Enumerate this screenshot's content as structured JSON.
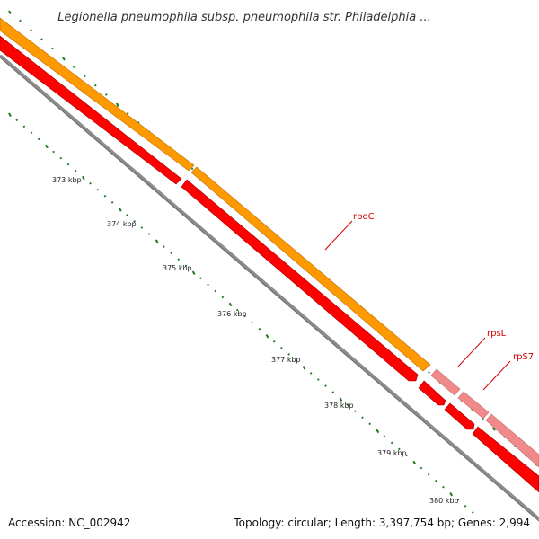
{
  "title": "Legionella pneumophila subsp. pneumophila str. Philadelphia ...",
  "footer": {
    "accession": "Accession: NC_002942",
    "summary": "Topology: circular; Length: 3,397,754 bp; Genes: 2,994"
  },
  "ticks": [
    {
      "label": "373 kbp"
    },
    {
      "label": "374 kbp"
    },
    {
      "label": "375 kbp"
    },
    {
      "label": "376 kbp"
    },
    {
      "label": "377 kbp"
    },
    {
      "label": "378 kbp"
    },
    {
      "label": "379 kbp"
    },
    {
      "label": "380 kbp"
    }
  ],
  "genes": [
    {
      "name": "rpoC",
      "strand": "+",
      "color_cds": "#ff9900",
      "color_gene": "#ff0000"
    },
    {
      "name": "rpsL",
      "strand": "+",
      "color_cds": "#f08a8a",
      "color_gene": "#ff0000"
    },
    {
      "name": "rpS7",
      "strand": "+",
      "color_cds": "#f08a8a",
      "color_gene": "#ff0000"
    }
  ],
  "colors": {
    "backbone": "#808080",
    "tick_green": "#1a7a1a"
  }
}
